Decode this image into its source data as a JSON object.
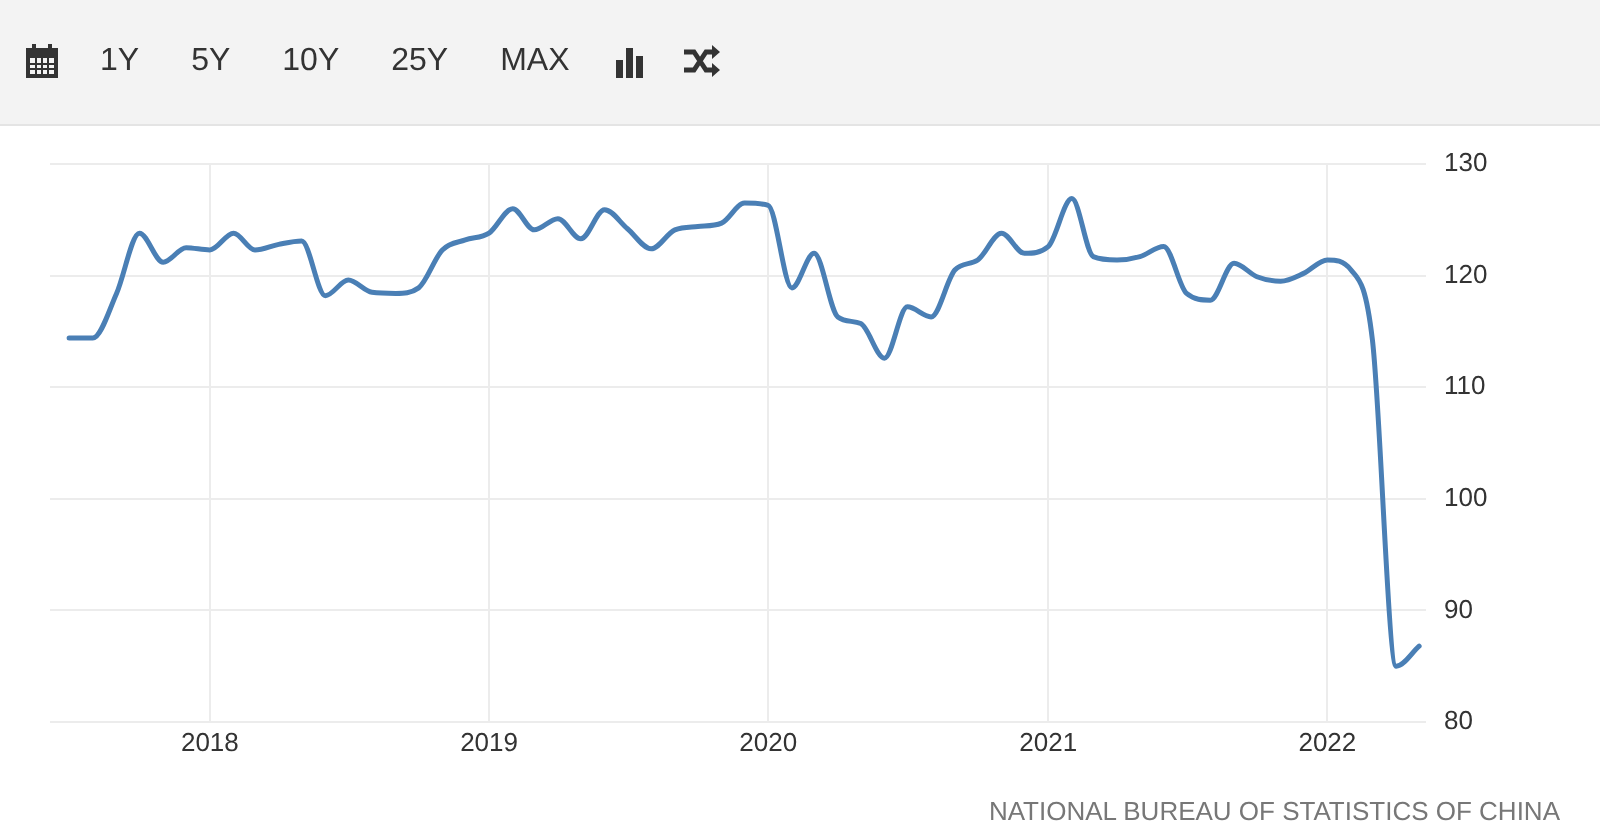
{
  "chart_data": {
    "type": "line",
    "x": [
      "2017-07",
      "2017-08",
      "2017-09",
      "2017-10",
      "2017-11",
      "2017-12",
      "2018-01",
      "2018-02",
      "2018-03",
      "2018-04",
      "2018-05",
      "2018-06",
      "2018-07",
      "2018-08",
      "2018-09",
      "2018-10",
      "2018-11",
      "2018-12",
      "2019-01",
      "2019-02",
      "2019-03",
      "2019-04",
      "2019-05",
      "2019-06",
      "2019-07",
      "2019-08",
      "2019-09",
      "2019-10",
      "2019-11",
      "2019-12",
      "2020-01",
      "2020-02",
      "2020-03",
      "2020-04",
      "2020-05",
      "2020-06",
      "2020-07",
      "2020-08",
      "2020-09",
      "2020-10",
      "2020-11",
      "2020-12",
      "2021-01",
      "2021-02",
      "2021-03",
      "2021-04",
      "2021-05",
      "2021-06",
      "2021-07",
      "2021-08",
      "2021-09",
      "2021-10",
      "2021-11",
      "2021-12",
      "2022-01",
      "2022-02",
      "2022-03",
      "2022-04",
      "2022-05"
    ],
    "series": [
      {
        "color": "#4a7fb5",
        "values": [
          114.4,
          114.4,
          118.4,
          123.8,
          121.2,
          122.5,
          122.3,
          123.8,
          122.3,
          122.8,
          123.1,
          118.2,
          119.6,
          118.5,
          118.4,
          118.9,
          122.3,
          123.2,
          123.8,
          126.0,
          124.1,
          125.1,
          123.3,
          125.9,
          124.2,
          122.4,
          124.1,
          124.4,
          124.7,
          126.5,
          126.3,
          118.9,
          122.0,
          116.3,
          115.7,
          112.6,
          117.2,
          116.3,
          120.5,
          121.4,
          123.8,
          122.0,
          122.6,
          126.9,
          121.7,
          121.4,
          121.7,
          122.6,
          118.4,
          117.8,
          121.1,
          119.9,
          119.5,
          120.2,
          121.4,
          120.5,
          114.2,
          85.0,
          86.8
        ]
      }
    ],
    "xlim": [
      "2017-06-06",
      "2022-05-10"
    ],
    "xticks": [
      "2018",
      "2019",
      "2020",
      "2021",
      "2022"
    ],
    "ylim": [
      80,
      130
    ],
    "yticks": [
      80,
      90,
      100,
      110,
      120,
      130
    ],
    "grid": true,
    "legend": false,
    "marker": "none",
    "line_style": "solid",
    "annotations": [
      "1Y",
      "5Y",
      "10Y",
      "25Y",
      "MAX",
      "NATIONAL BUREAU OF STATISTICS OF CHINA"
    ]
  }
}
